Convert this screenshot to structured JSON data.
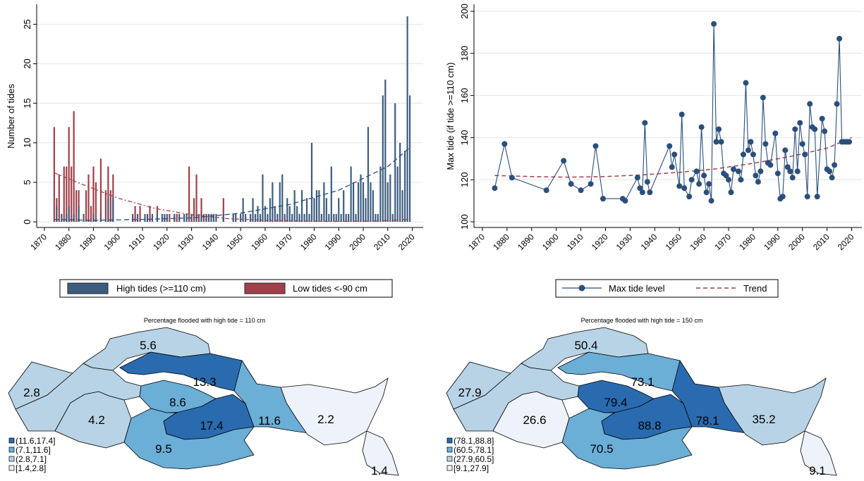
{
  "chart_data": [
    {
      "type": "bar",
      "ylabel": "Number of tides",
      "x_ticks": [
        1870,
        1880,
        1890,
        1900,
        1910,
        1920,
        1930,
        1940,
        1950,
        1960,
        1970,
        1980,
        1990,
        2000,
        2010,
        2020
      ],
      "y_ticks": [
        0,
        5,
        10,
        15,
        20,
        25
      ],
      "xlim": [
        1868,
        2023
      ],
      "ylim": [
        0,
        27
      ],
      "colors": {
        "high": "#3d5d80",
        "low": "#a0404a",
        "high_trend": "#2a4a78",
        "low_trend": "#a0404a"
      },
      "legend": [
        "High tides (>=110 cm)",
        "Low tides <-90 cm"
      ],
      "high_tides": {
        "name": "High tides (>=110 cm)",
        "points": [
          [
            1875,
            2
          ],
          [
            1877,
            1
          ],
          [
            1879,
            1
          ],
          [
            1880,
            2
          ],
          [
            1882,
            1
          ],
          [
            1884,
            2
          ],
          [
            1886,
            1
          ],
          [
            1890,
            1
          ],
          [
            1893,
            1
          ],
          [
            1896,
            3
          ],
          [
            1898,
            3
          ],
          [
            1906,
            1
          ],
          [
            1908,
            1
          ],
          [
            1911,
            1
          ],
          [
            1912,
            1
          ],
          [
            1914,
            1
          ],
          [
            1916,
            1
          ],
          [
            1918,
            1
          ],
          [
            1919,
            1
          ],
          [
            1920,
            1
          ],
          [
            1923,
            1
          ],
          [
            1925,
            1
          ],
          [
            1927,
            1
          ],
          [
            1928,
            1
          ],
          [
            1930,
            1
          ],
          [
            1932,
            1
          ],
          [
            1934,
            1
          ],
          [
            1936,
            1
          ],
          [
            1937,
            1
          ],
          [
            1938,
            1
          ],
          [
            1939,
            1
          ],
          [
            1940,
            1
          ],
          [
            1943,
            1
          ],
          [
            1947,
            1
          ],
          [
            1948,
            1
          ],
          [
            1950,
            1
          ],
          [
            1951,
            3
          ],
          [
            1952,
            1
          ],
          [
            1954,
            1
          ],
          [
            1955,
            3
          ],
          [
            1956,
            1
          ],
          [
            1957,
            2
          ],
          [
            1958,
            1
          ],
          [
            1959,
            6
          ],
          [
            1960,
            2
          ],
          [
            1961,
            1
          ],
          [
            1962,
            3
          ],
          [
            1963,
            5
          ],
          [
            1964,
            2
          ],
          [
            1965,
            1
          ],
          [
            1966,
            5
          ],
          [
            1967,
            6
          ],
          [
            1968,
            1
          ],
          [
            1969,
            3
          ],
          [
            1970,
            2
          ],
          [
            1971,
            1
          ],
          [
            1972,
            4
          ],
          [
            1973,
            2
          ],
          [
            1974,
            1
          ],
          [
            1975,
            4
          ],
          [
            1976,
            1
          ],
          [
            1977,
            3
          ],
          [
            1978,
            1
          ],
          [
            1979,
            10
          ],
          [
            1980,
            3
          ],
          [
            1981,
            4
          ],
          [
            1982,
            4
          ],
          [
            1983,
            1
          ],
          [
            1984,
            5
          ],
          [
            1985,
            3
          ],
          [
            1986,
            1
          ],
          [
            1987,
            7
          ],
          [
            1988,
            1
          ],
          [
            1989,
            1
          ],
          [
            1990,
            3
          ],
          [
            1991,
            1
          ],
          [
            1992,
            4
          ],
          [
            1993,
            1
          ],
          [
            1994,
            1
          ],
          [
            1995,
            7
          ],
          [
            1996,
            5
          ],
          [
            1997,
            1
          ],
          [
            1998,
            5
          ],
          [
            1999,
            6
          ],
          [
            2000,
            5
          ],
          [
            2001,
            3
          ],
          [
            2002,
            12
          ],
          [
            2003,
            5
          ],
          [
            2004,
            4
          ],
          [
            2005,
            1
          ],
          [
            2006,
            1
          ],
          [
            2007,
            7
          ],
          [
            2008,
            16
          ],
          [
            2009,
            18
          ],
          [
            2010,
            5
          ],
          [
            2011,
            6
          ],
          [
            2012,
            1
          ],
          [
            2013,
            15
          ],
          [
            2014,
            7
          ],
          [
            2015,
            10
          ],
          [
            2016,
            4
          ],
          [
            2017,
            9
          ],
          [
            2018,
            26
          ],
          [
            2019,
            16
          ]
        ]
      },
      "low_tides": {
        "name": "Low tides <-90 cm",
        "points": [
          [
            1874,
            12
          ],
          [
            1875,
            3
          ],
          [
            1876,
            6
          ],
          [
            1878,
            7
          ],
          [
            1879,
            7
          ],
          [
            1880,
            12
          ],
          [
            1881,
            7
          ],
          [
            1882,
            14
          ],
          [
            1883,
            4
          ],
          [
            1884,
            4
          ],
          [
            1887,
            4
          ],
          [
            1888,
            6
          ],
          [
            1889,
            2
          ],
          [
            1890,
            7
          ],
          [
            1891,
            5
          ],
          [
            1893,
            8
          ],
          [
            1895,
            4
          ],
          [
            1896,
            7
          ],
          [
            1897,
            4
          ],
          [
            1898,
            6
          ],
          [
            1907,
            2
          ],
          [
            1909,
            2
          ],
          [
            1913,
            2
          ],
          [
            1916,
            2
          ],
          [
            1921,
            1
          ],
          [
            1924,
            1
          ],
          [
            1929,
            7
          ],
          [
            1930,
            1
          ],
          [
            1931,
            3
          ],
          [
            1932,
            6
          ],
          [
            1933,
            1
          ],
          [
            1934,
            3
          ],
          [
            1935,
            1
          ],
          [
            1936,
            1
          ],
          [
            1943,
            3
          ]
        ]
      },
      "high_trend": {
        "x": [
          1874,
          1890,
          1910,
          1930,
          1950,
          1970,
          1990,
          2010,
          2019
        ],
        "y": [
          0.3,
          0.2,
          0.3,
          0.5,
          1.1,
          2.2,
          4.0,
          7.0,
          9.4
        ]
      },
      "low_trend": {
        "x": [
          1874,
          1885,
          1900,
          1915,
          1930,
          1945,
          1960,
          1975,
          1990,
          2005,
          2019
        ],
        "y": [
          6.2,
          4.8,
          3.0,
          1.7,
          0.9,
          0.4,
          0.2,
          0.1,
          0.05,
          0.1,
          0.3
        ]
      }
    },
    {
      "type": "line",
      "ylabel": "Max tide (if tide >=110 cm)",
      "x_ticks": [
        1870,
        1880,
        1890,
        1900,
        1910,
        1920,
        1930,
        1940,
        1950,
        1960,
        1970,
        1980,
        1990,
        2000,
        2010,
        2020
      ],
      "y_ticks": [
        100,
        120,
        140,
        160,
        180,
        200
      ],
      "xlim": [
        1868,
        2023
      ],
      "ylim": [
        100,
        200
      ],
      "colors": {
        "line": "#2b4f7a",
        "trend": "#a0404a"
      },
      "legend": [
        "Max tide level",
        "Trend"
      ],
      "series": {
        "name": "Max tide level",
        "x": [
          1875,
          1879,
          1882,
          1896,
          1903,
          1906,
          1910,
          1914,
          1916,
          1919,
          1927,
          1928,
          1933,
          1934,
          1935,
          1936,
          1937,
          1938,
          1946,
          1947,
          1948,
          1950,
          1951,
          1952,
          1954,
          1955,
          1957,
          1958,
          1959,
          1960,
          1961,
          1962,
          1963,
          1964,
          1965,
          1966,
          1967,
          1968,
          1969,
          1970,
          1971,
          1972,
          1974,
          1975,
          1976,
          1977,
          1978,
          1979,
          1980,
          1981,
          1982,
          1983,
          1984,
          1985,
          1986,
          1987,
          1989,
          1990,
          1991,
          1992,
          1993,
          1994,
          1995,
          1996,
          1997,
          1998,
          1999,
          2000,
          2001,
          2002,
          2003,
          2004,
          2005,
          2006,
          2008,
          2009,
          2010,
          2011,
          2012,
          2013,
          2014,
          2015,
          2016,
          2017,
          2018,
          2019
        ],
        "y": [
          116,
          137,
          121,
          115,
          129,
          118,
          115,
          118,
          136,
          111,
          111,
          110,
          121,
          116,
          114,
          147,
          119,
          114,
          136,
          126,
          132,
          117,
          151,
          116,
          112,
          120,
          124,
          118,
          145,
          122,
          114,
          118,
          110,
          194,
          138,
          144,
          138,
          123,
          122,
          120,
          114,
          125,
          124,
          120,
          132,
          166,
          134,
          138,
          132,
          122,
          119,
          124,
          159,
          137,
          128,
          127,
          142,
          123,
          111,
          112,
          134,
          126,
          124,
          121,
          144,
          124,
          147,
          137,
          132,
          112,
          156,
          145,
          144,
          112,
          149,
          143,
          125,
          124,
          121,
          127,
          156,
          187,
          138,
          138,
          138,
          138
        ]
      },
      "trend": {
        "x": [
          1875,
          1890,
          1905,
          1920,
          1935,
          1950,
          1965,
          1980,
          1995,
          2010,
          2020
        ],
        "y": [
          122,
          121.5,
          121.2,
          121.5,
          122.3,
          123.5,
          125.2,
          127.8,
          131,
          135,
          140
        ]
      }
    },
    {
      "type": "map",
      "title": "Percentage flooded with high tide = 110 cm",
      "legend": [
        "(11.6,17.4]",
        "(7.1,11.6]",
        "(2.8,7.1]",
        "[1.4,2.8]"
      ],
      "legend_colors": [
        "#2a6bb0",
        "#6baed6",
        "#b8d3e6",
        "#eef3fb"
      ],
      "regions": [
        {
          "id": "far-west",
          "label": "",
          "class": 2
        },
        {
          "id": "north",
          "label": "5.6",
          "class": 2
        },
        {
          "id": "west",
          "label": "2.8",
          "class": 2
        },
        {
          "id": "north-center",
          "label": "13.3",
          "class": 0
        },
        {
          "id": "south-west",
          "label": "4.2",
          "class": 2
        },
        {
          "id": "center-small",
          "label": "8.6",
          "class": 1
        },
        {
          "id": "center",
          "label": "17.4",
          "class": 0
        },
        {
          "id": "south",
          "label": "9.5",
          "class": 1
        },
        {
          "id": "east-center",
          "label": "11.6",
          "class": 1
        },
        {
          "id": "east",
          "label": "2.2",
          "class": 3
        },
        {
          "id": "south-east",
          "label": "1.4",
          "class": 3
        }
      ]
    },
    {
      "type": "map",
      "title": "Percentage flooded with high tide = 150 cm",
      "legend": [
        "(78.1,88.8]",
        "(60.5,78.1]",
        "(27.9,60.5]",
        "[9.1,27.9]"
      ],
      "legend_colors": [
        "#2a6bb0",
        "#6baed6",
        "#b8d3e6",
        "#eef3fb"
      ],
      "regions": [
        {
          "id": "far-west",
          "label": "",
          "class": 2
        },
        {
          "id": "north",
          "label": "50.4",
          "class": 2
        },
        {
          "id": "west",
          "label": "27.9",
          "class": 2
        },
        {
          "id": "north-center",
          "label": "73.1",
          "class": 1
        },
        {
          "id": "south-west",
          "label": "26.6",
          "class": 3
        },
        {
          "id": "center-small",
          "label": "79.4",
          "class": 0
        },
        {
          "id": "center",
          "label": "88.8",
          "class": 0
        },
        {
          "id": "south",
          "label": "70.5",
          "class": 1
        },
        {
          "id": "east-center",
          "label": "78.1",
          "class": 0
        },
        {
          "id": "east",
          "label": "35.2",
          "class": 2
        },
        {
          "id": "south-east",
          "label": "9.1",
          "class": 3
        }
      ]
    }
  ]
}
